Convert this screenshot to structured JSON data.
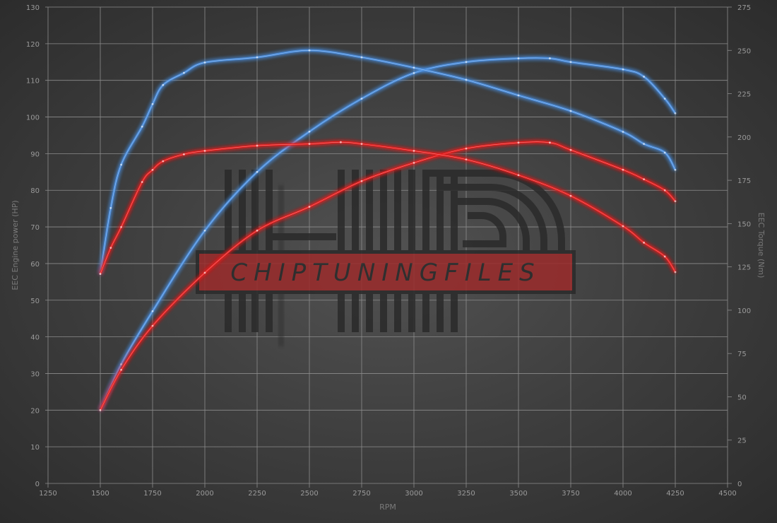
{
  "chart_data": {
    "type": "line",
    "title": "",
    "xlabel": "RPM",
    "ylabel_left": "EEC Engine power (HP)",
    "ylabel_right": "EEC Torque (Nm)",
    "xlim": [
      1250,
      4500
    ],
    "ylim_left": [
      0,
      130
    ],
    "ylim_right": [
      0,
      275
    ],
    "x_ticks": [
      1250,
      1500,
      1750,
      2000,
      2250,
      2500,
      2750,
      3000,
      3250,
      3500,
      3750,
      4000,
      4250,
      4500
    ],
    "y_ticks_left": [
      0,
      10,
      20,
      30,
      40,
      50,
      60,
      70,
      80,
      90,
      100,
      110,
      120,
      130
    ],
    "y_ticks_right": [
      0,
      25,
      50,
      75,
      100,
      125,
      150,
      175,
      200,
      225,
      250,
      275
    ],
    "grid": true,
    "colors": {
      "tuned": "#4a90e2",
      "stock": "#e8201e"
    },
    "series": [
      {
        "id": "tuned-power",
        "axis": "left",
        "color": "#4a90e2",
        "points": [
          [
            1500,
            20
          ],
          [
            1600,
            32.5
          ],
          [
            1750,
            47
          ],
          [
            2000,
            69
          ],
          [
            2250,
            85
          ],
          [
            2500,
            96
          ],
          [
            2750,
            105
          ],
          [
            3000,
            112
          ],
          [
            3250,
            115
          ],
          [
            3500,
            116
          ],
          [
            3650,
            116
          ],
          [
            3750,
            115
          ],
          [
            4000,
            113
          ],
          [
            4100,
            111
          ],
          [
            4200,
            105
          ],
          [
            4250,
            101
          ]
        ]
      },
      {
        "id": "tuned-torque",
        "axis": "right",
        "color": "#4a90e2",
        "points": [
          [
            1500,
            121
          ],
          [
            1550,
            159
          ],
          [
            1600,
            184
          ],
          [
            1700,
            206
          ],
          [
            1750,
            219
          ],
          [
            1800,
            230
          ],
          [
            1900,
            237
          ],
          [
            2000,
            243
          ],
          [
            2250,
            246
          ],
          [
            2500,
            250
          ],
          [
            2750,
            246
          ],
          [
            3000,
            240
          ],
          [
            3250,
            233
          ],
          [
            3500,
            224
          ],
          [
            3750,
            215
          ],
          [
            4000,
            203
          ],
          [
            4100,
            196
          ],
          [
            4200,
            191
          ],
          [
            4250,
            181
          ]
        ]
      },
      {
        "id": "stock-power",
        "axis": "left",
        "color": "#e8201e",
        "points": [
          [
            1500,
            20
          ],
          [
            1600,
            31
          ],
          [
            1750,
            43
          ],
          [
            2000,
            57.5
          ],
          [
            2250,
            69
          ],
          [
            2500,
            75.5
          ],
          [
            2750,
            82.5
          ],
          [
            3000,
            87.5
          ],
          [
            3250,
            91.4
          ],
          [
            3500,
            93
          ],
          [
            3650,
            93
          ],
          [
            3750,
            91
          ],
          [
            4000,
            85.6
          ],
          [
            4100,
            83
          ],
          [
            4200,
            80
          ],
          [
            4250,
            77
          ]
        ]
      },
      {
        "id": "stock-torque",
        "axis": "right",
        "color": "#e8201e",
        "points": [
          [
            1500,
            121
          ],
          [
            1550,
            136
          ],
          [
            1600,
            148
          ],
          [
            1700,
            174
          ],
          [
            1750,
            181
          ],
          [
            1800,
            186
          ],
          [
            1900,
            190
          ],
          [
            2000,
            192
          ],
          [
            2250,
            195
          ],
          [
            2500,
            196
          ],
          [
            2650,
            197
          ],
          [
            2750,
            196
          ],
          [
            3000,
            192
          ],
          [
            3250,
            187
          ],
          [
            3500,
            178
          ],
          [
            3750,
            166
          ],
          [
            4000,
            148.5
          ],
          [
            4100,
            139
          ],
          [
            4200,
            131
          ],
          [
            4250,
            122
          ]
        ]
      }
    ]
  },
  "watermark": {
    "text": "CHIPTUNINGFILES"
  }
}
